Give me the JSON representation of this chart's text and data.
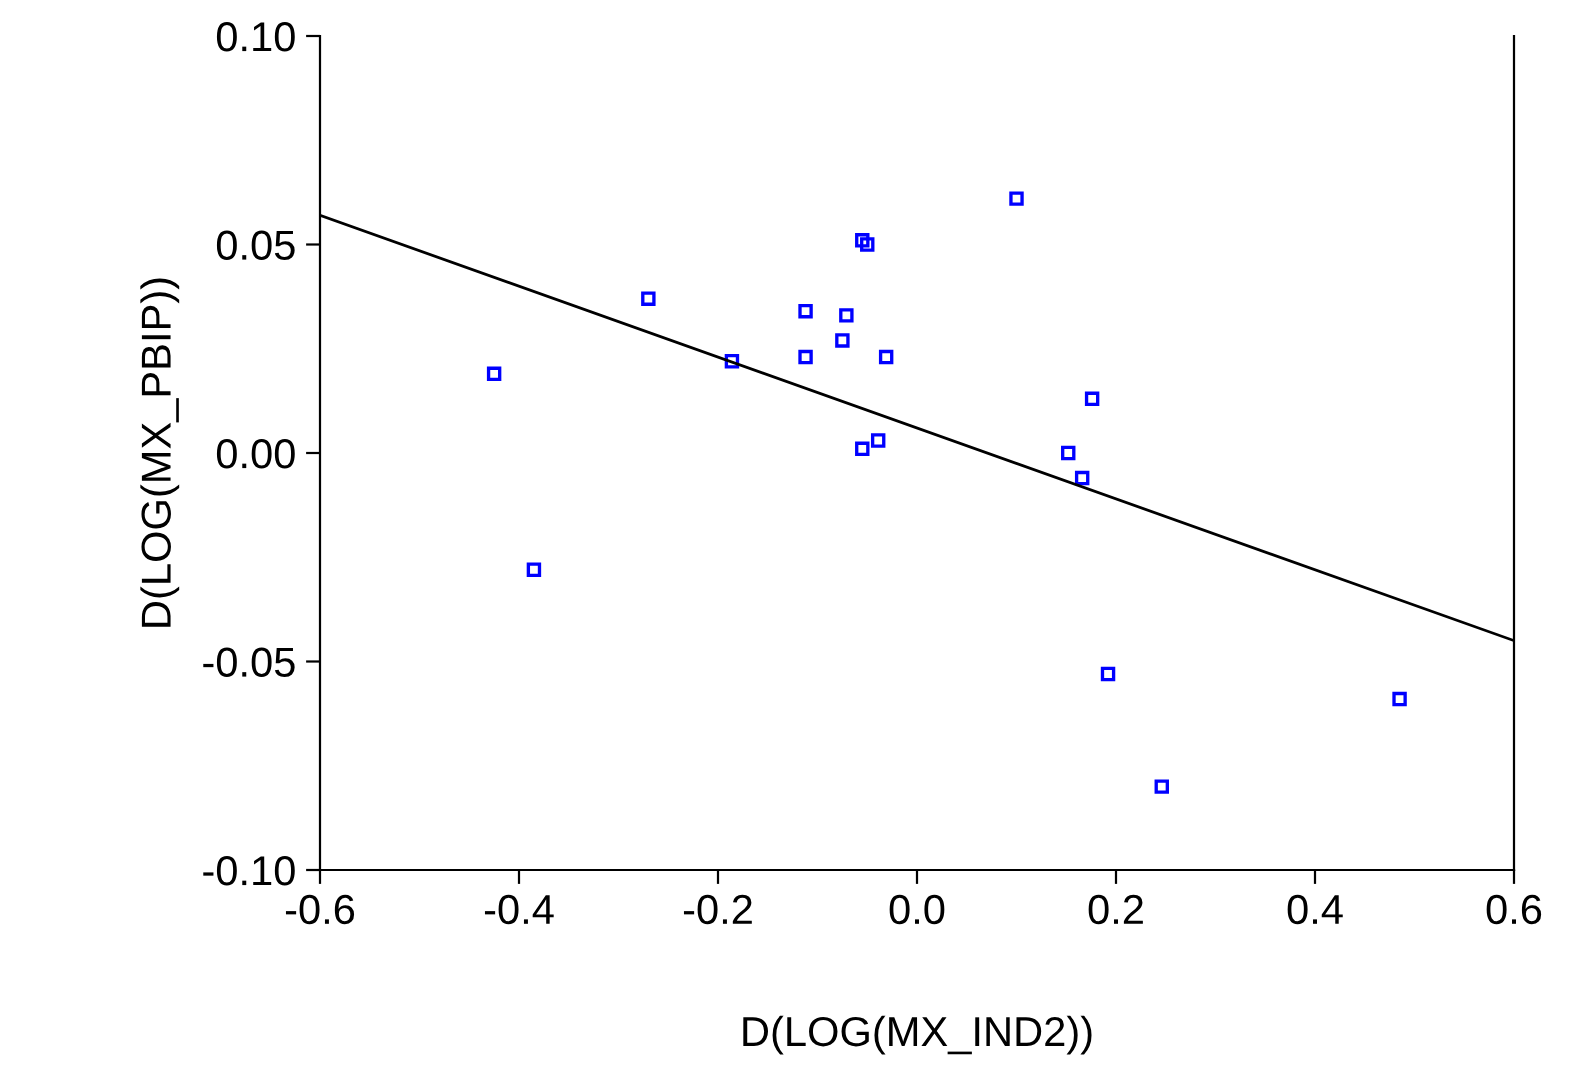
{
  "chart_data": {
    "type": "scatter",
    "xlabel": "D(LOG(MX_IND2))",
    "ylabel": "D(LOG(MX_PBIP))",
    "x": [
      -0.425,
      -0.385,
      -0.27,
      -0.186,
      -0.112,
      -0.112,
      -0.075,
      -0.071,
      -0.055,
      -0.05,
      -0.031,
      -0.055,
      -0.039,
      0.1,
      0.176,
      0.152,
      0.166,
      0.192,
      0.246,
      0.485
    ],
    "series": [
      {
        "color": "#0000ff",
        "marker": "square",
        "values": [
          0.019,
          -0.028,
          0.037,
          0.022,
          0.034,
          0.023,
          0.027,
          0.033,
          0.051,
          0.05,
          0.023,
          0.001,
          0.003,
          0.061,
          0.013,
          0.0,
          -0.006,
          -0.053,
          -0.08,
          -0.059
        ]
      },
      {
        "type": "line",
        "color": "#000000",
        "x": [
          -0.6,
          0.6
        ],
        "values": [
          0.057,
          -0.045
        ]
      }
    ],
    "grid": false,
    "xlim": [
      -0.6,
      0.6
    ],
    "ylim": [
      -0.1,
      0.1
    ],
    "xticks": [
      -0.6,
      -0.4,
      -0.2,
      {
        "value": 0,
        "label": "0.0"
      },
      0.2,
      0.4,
      0.6
    ],
    "yticks": [
      {
        "value": -0.1,
        "label": "-0.10"
      },
      -0.05,
      {
        "value": 0,
        "label": "0.00"
      },
      0.05,
      {
        "value": 0.1,
        "label": "0.10"
      }
    ]
  }
}
